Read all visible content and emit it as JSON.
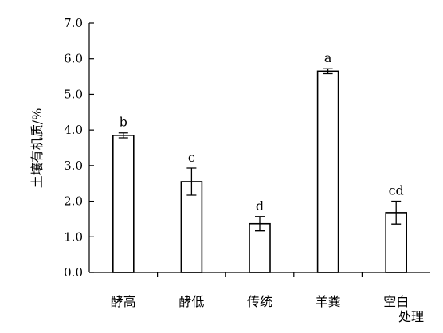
{
  "chart_data": {
    "type": "bar",
    "title": "",
    "xlabel": "处理",
    "ylabel": "土壤有机质/%",
    "categories": [
      "酵高",
      "酵低",
      "传统",
      "羊粪",
      "空白"
    ],
    "values": [
      3.85,
      2.55,
      1.37,
      5.65,
      1.68
    ],
    "errors": [
      0.07,
      0.38,
      0.2,
      0.07,
      0.32
    ],
    "significance": [
      "b",
      "c",
      "d",
      "a",
      "cd"
    ],
    "ylim": [
      0,
      7
    ],
    "yticks": [
      0,
      1,
      2,
      3,
      4,
      5,
      6,
      7
    ],
    "ytick_labels": [
      "0.0",
      "1.0",
      "2.0",
      "3.0",
      "4.0",
      "5.0",
      "6.0",
      "7.0"
    ],
    "grid": false,
    "bar_fill": "#ffffff",
    "bar_stroke": "#000000"
  }
}
